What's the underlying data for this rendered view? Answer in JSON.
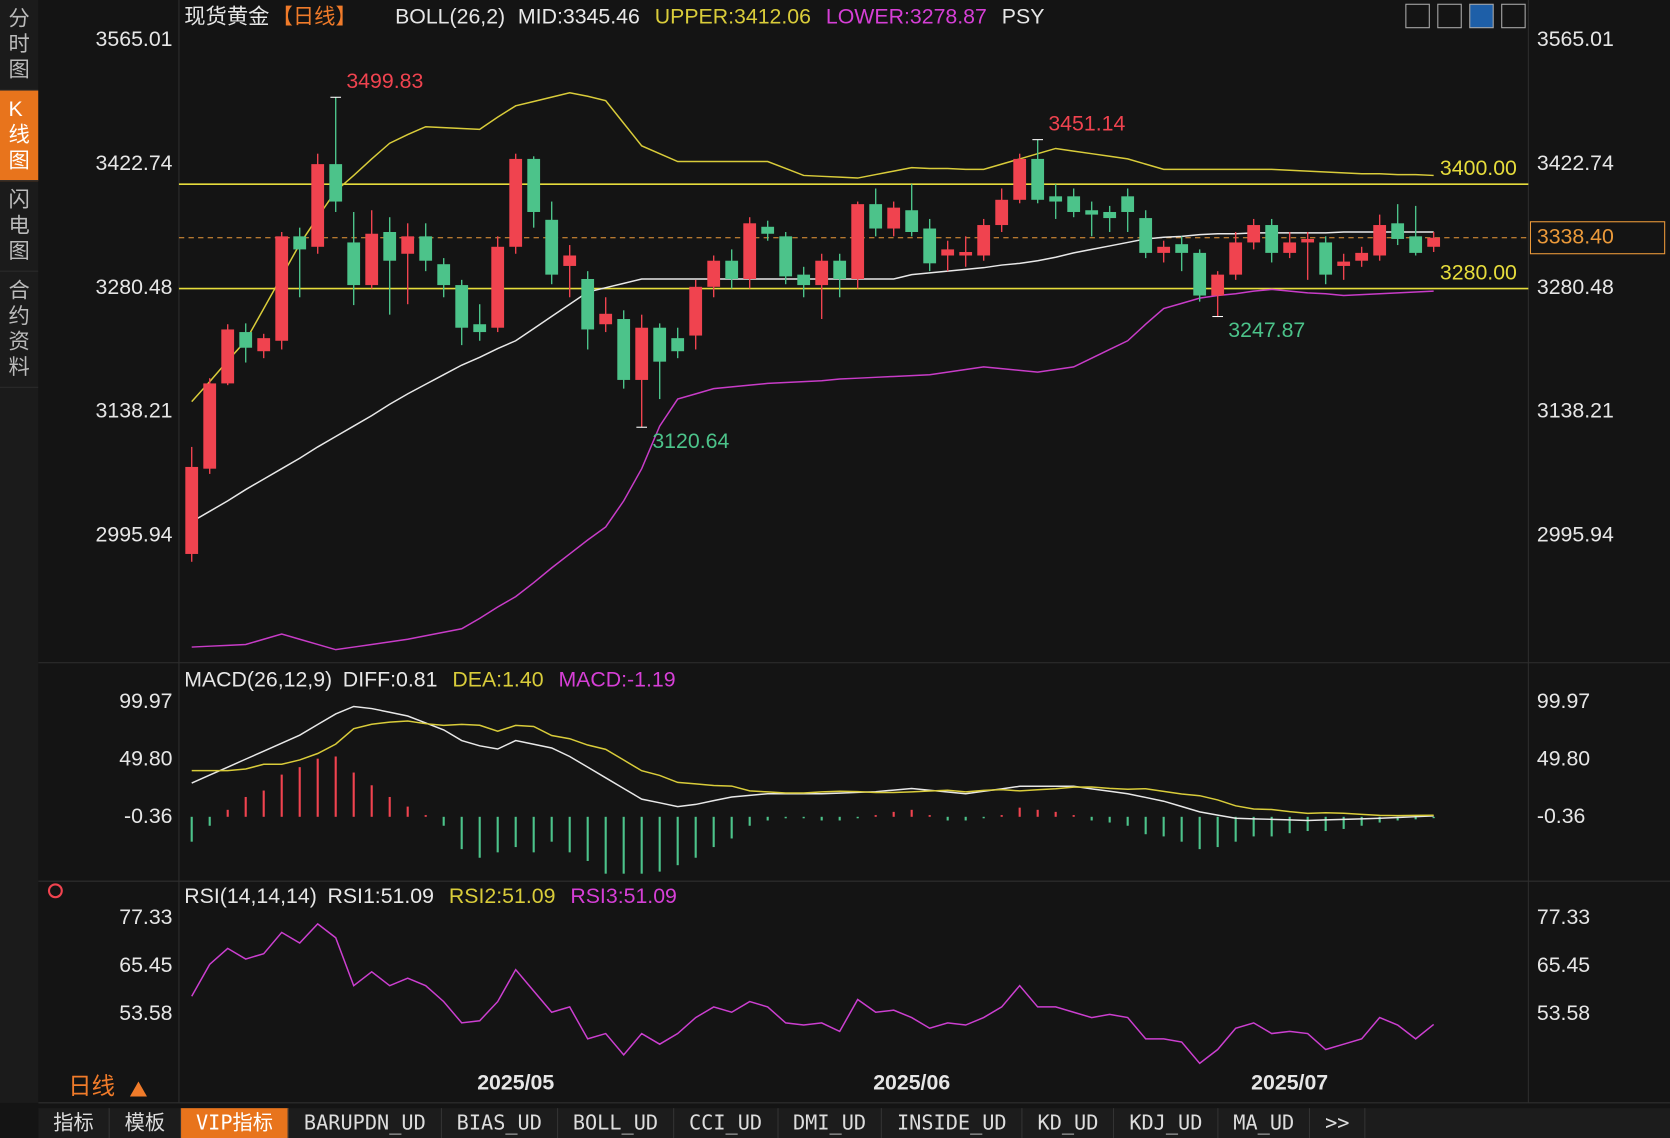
{
  "ui": {
    "sidebar": [
      "分时图",
      "K线图",
      "闪电图",
      "合约资料"
    ],
    "period": "日线",
    "tabs": [
      "指标",
      "模板",
      "VIP指标",
      "BARUPDN_UD",
      "BIAS_UD",
      "BOLL_UD",
      "CCI_UD",
      "DMI_UD",
      "INSIDE_UD",
      "KD_UD",
      "KDJ_UD",
      "MA_UD",
      ">>"
    ]
  },
  "chart_data": [
    {
      "type": "candlestick",
      "title": "现货黄金",
      "subtitle": "【日线】",
      "indicator": "BOLL(26,2)",
      "legend": [
        {
          "text": "MID:3345.46",
          "color": "#e8e8e8"
        },
        {
          "text": "UPPER:3412.06",
          "color": "#d9cc3a"
        },
        {
          "text": "LOWER:3278.87",
          "color": "#d63fd6"
        }
      ],
      "extra_label": "PSY",
      "categories": [
        null,
        null,
        null,
        null,
        null,
        null,
        null,
        null,
        null,
        null,
        null,
        null,
        null,
        null,
        null,
        null,
        null,
        null,
        "2025/05",
        null,
        null,
        null,
        null,
        null,
        null,
        null,
        null,
        null,
        null,
        null,
        null,
        null,
        null,
        null,
        null,
        null,
        null,
        null,
        null,
        null,
        "2025/06",
        null,
        null,
        null,
        null,
        null,
        null,
        null,
        null,
        null,
        null,
        null,
        null,
        null,
        null,
        null,
        null,
        null,
        null,
        null,
        null,
        "2025/07",
        null,
        null,
        null,
        null,
        null,
        null,
        null,
        null
      ],
      "candles": {
        "open": [
          2975,
          3073,
          3171,
          3230,
          3208,
          3220,
          3340,
          3328,
          3423,
          3333,
          3284,
          3345,
          3320,
          3340,
          3308,
          3284,
          3239,
          3235,
          3328,
          3429,
          3359,
          3306,
          3291,
          3239,
          3245,
          3175,
          3235,
          3223,
          3226,
          3282,
          3312,
          3291,
          3351,
          3340,
          3296,
          3284,
          3312,
          3291,
          3377,
          3349,
          3370,
          3349,
          3318,
          3318,
          3318,
          3353,
          3382,
          3429,
          3386,
          3386,
          3370,
          3368,
          3386,
          3361,
          3321,
          3331,
          3321,
          3272,
          3296,
          3333,
          3353,
          3321,
          3333,
          3333,
          3306,
          3312,
          3318,
          3355,
          3340,
          3328
        ],
        "high": [
          3098,
          3177,
          3239,
          3240,
          3228,
          3345,
          3350,
          3435,
          3499.83,
          3368,
          3370,
          3362,
          3355,
          3355,
          3315,
          3290,
          3262,
          3340,
          3435,
          3432,
          3380,
          3330,
          3300,
          3270,
          3255,
          3250,
          3240,
          3235,
          3290,
          3318,
          3325,
          3362,
          3358,
          3345,
          3305,
          3320,
          3320,
          3380,
          3395,
          3380,
          3400,
          3360,
          3335,
          3340,
          3360,
          3395,
          3435,
          3451.14,
          3400,
          3395,
          3380,
          3375,
          3395,
          3370,
          3335,
          3340,
          3325,
          3300,
          3345,
          3360,
          3360,
          3345,
          3345,
          3340,
          3320,
          3328,
          3365,
          3377,
          3375,
          3345
        ],
        "low": [
          2966,
          3067,
          3169,
          3195,
          3200,
          3210,
          3270,
          3320,
          3368,
          3261,
          3280,
          3250,
          3262,
          3300,
          3270,
          3215,
          3220,
          3230,
          3320,
          3350,
          3285,
          3270,
          3210,
          3230,
          3165,
          3120.64,
          3153,
          3200,
          3210,
          3270,
          3280,
          3280,
          3335,
          3285,
          3270,
          3245,
          3270,
          3280,
          3340,
          3340,
          3340,
          3300,
          3300,
          3305,
          3312,
          3345,
          3378,
          3378,
          3360,
          3362,
          3340,
          3345,
          3345,
          3315,
          3310,
          3300,
          3265,
          3247.87,
          3290,
          3325,
          3310,
          3315,
          3290,
          3285,
          3290,
          3305,
          3312,
          3330,
          3318,
          3322
        ],
        "close": [
          3075,
          3171,
          3233,
          3212,
          3223,
          3340,
          3325,
          3423,
          3380,
          3284,
          3343,
          3312,
          3340,
          3312,
          3284,
          3235,
          3230,
          3328,
          3429,
          3368,
          3296,
          3318,
          3233,
          3251,
          3175,
          3235,
          3196,
          3208,
          3282,
          3312,
          3291,
          3355,
          3343,
          3294,
          3284,
          3312,
          3291,
          3377,
          3349,
          3373,
          3345,
          3309,
          3325,
          3322,
          3353,
          3382,
          3429,
          3382,
          3380,
          3368,
          3365,
          3361,
          3368,
          3321,
          3328,
          3321,
          3272,
          3296,
          3333,
          3353,
          3321,
          3333,
          3337,
          3296,
          3311,
          3321,
          3353,
          3337,
          3321,
          3338.4
        ]
      },
      "up_color": "#f0434f",
      "down_color": "#4cc38a",
      "series": [
        {
          "color": "#d9cc3a",
          "values": [
            3150,
            3173,
            3197,
            3220,
            3257,
            3294,
            3331,
            3362,
            3392,
            3410,
            3429,
            3447,
            3457,
            3466,
            3465,
            3464,
            3463,
            3477,
            3490,
            3495,
            3500,
            3505,
            3501,
            3496,
            3470,
            3444,
            3435,
            3426,
            3426,
            3426,
            3426,
            3426,
            3426,
            3418,
            3410,
            3409,
            3408,
            3407,
            3411,
            3415,
            3419,
            3418,
            3418,
            3417,
            3417,
            3423,
            3429,
            3435,
            3441,
            3438,
            3435,
            3432,
            3429,
            3423,
            3417,
            3417,
            3417,
            3417,
            3417,
            3417,
            3417,
            3416,
            3415,
            3414,
            3413,
            3412,
            3412,
            3411,
            3411,
            3410
          ]
        },
        {
          "color": "#e8e8e8",
          "values": [
            3012,
            3024,
            3036,
            3049,
            3061,
            3073,
            3085,
            3098,
            3110,
            3122,
            3134,
            3147,
            3159,
            3170,
            3181,
            3192,
            3201,
            3211,
            3220,
            3234,
            3248,
            3262,
            3276,
            3281,
            3286,
            3291,
            3291,
            3291,
            3291,
            3291,
            3291,
            3291,
            3291,
            3291,
            3291,
            3291,
            3291,
            3291,
            3291,
            3291,
            3296,
            3298,
            3300,
            3302,
            3304,
            3307,
            3309,
            3312,
            3316,
            3321,
            3325,
            3329,
            3333,
            3337,
            3339,
            3340,
            3342,
            3343,
            3343,
            3344,
            3344,
            3344,
            3344,
            3344,
            3345,
            3345,
            3345,
            3345,
            3345,
            3345
          ]
        },
        {
          "color": "#c83cc8",
          "values": [
            2868,
            2869,
            2870,
            2871,
            2877,
            2883,
            2877,
            2871,
            2865,
            2868,
            2871,
            2874,
            2877,
            2881,
            2885,
            2889,
            2901,
            2914,
            2926,
            2942,
            2959,
            2975,
            2991,
            3006,
            3036,
            3073,
            3122,
            3153,
            3159,
            3165,
            3167,
            3169,
            3171,
            3172,
            3173,
            3174,
            3176,
            3177,
            3178,
            3179,
            3180,
            3181,
            3184,
            3187,
            3190,
            3188,
            3186,
            3184,
            3187,
            3190,
            3200,
            3210,
            3220,
            3239,
            3257,
            3263,
            3269,
            3272,
            3274,
            3277,
            3279,
            3277,
            3275,
            3274,
            3272,
            3273,
            3274,
            3275,
            3276,
            3277
          ]
        }
      ],
      "ylim": [
        2852.4,
        3605.5
      ],
      "yticks": [
        2995.94,
        3138.21,
        3280.48,
        3422.74,
        3565.01
      ],
      "grid": false,
      "levels": [
        {
          "value": 3400,
          "label": "3400.00"
        },
        {
          "value": 3280,
          "label": "3280.00"
        }
      ],
      "level_color": "#e6dc3c",
      "last_price": {
        "value": 3338.4,
        "label": "3338.40"
      },
      "last_color": "#ec9a3a",
      "high_labels": [
        3499.83,
        3451.14
      ],
      "low_labels": [
        3120.64,
        3247.87
      ],
      "high_color": "#f0434f",
      "low_color": "#4cc38a"
    },
    {
      "type": "macd",
      "title": "MACD(26,12,9)",
      "legend": [
        {
          "text": "DIFF:0.81",
          "color": "#e8e8e8"
        },
        {
          "text": "DEA:1.40",
          "color": "#d9cc3a"
        },
        {
          "text": "MACD:-1.19",
          "color": "#d63fd6"
        }
      ],
      "values": [
        -21.7,
        -7.8,
        6.1,
        17.3,
        22.9,
        36.8,
        43.3,
        50.7,
        52.6,
        38.6,
        27.5,
        17.3,
        8.9,
        1.5,
        -7.8,
        -28.2,
        -35.7,
        -31.0,
        -26.4,
        -31.0,
        -21.7,
        -31.0,
        -38.5,
        -49.6,
        -49.6,
        -49.6,
        -47.8,
        -42.2,
        -35.7,
        -26.4,
        -18.9,
        -7.8,
        -3.2,
        -1.3,
        -1.3,
        -3.2,
        -3.2,
        -1.3,
        1.5,
        4.3,
        6.1,
        1.5,
        -3.2,
        -3.2,
        -1.3,
        1.5,
        8.0,
        6.1,
        4.3,
        1.5,
        -3.2,
        -5.0,
        -7.8,
        -15.2,
        -17.1,
        -21.7,
        -28.2,
        -26.4,
        -21.7,
        -17.1,
        -17.1,
        -14.3,
        -12.4,
        -12.4,
        -10.6,
        -7.8,
        -5.0,
        -3.2,
        -2.2,
        -1.19
      ],
      "up_color": "#f0434f",
      "down_color": "#4cc38a",
      "series": [
        {
          "color": "#e8e8e8",
          "values": [
            29.4,
            36.4,
            43.3,
            50.3,
            57.2,
            64.2,
            71.2,
            80.5,
            89.7,
            96.2,
            94.4,
            91.2,
            87.9,
            81.9,
            75.8,
            66.5,
            61.9,
            59.1,
            66.5,
            63.3,
            60.0,
            52.6,
            43.3,
            34.0,
            24.7,
            15.4,
            12.2,
            8.9,
            10.8,
            14.1,
            17.3,
            18.7,
            20.1,
            20.1,
            20.1,
            20.1,
            20.7,
            21.3,
            21.9,
            23.3,
            24.7,
            23.2,
            21.6,
            20.1,
            22.3,
            24.4,
            26.6,
            26.6,
            26.6,
            26.6,
            24.4,
            22.3,
            20.1,
            16.9,
            13.6,
            9.0,
            4.3,
            1.5,
            -1.3,
            -1.8,
            -2.2,
            -2.7,
            -3.2,
            -2.7,
            -2.2,
            -1.8,
            -1.3,
            -0.6,
            0.1,
            0.81
          ]
        },
        {
          "color": "#d9cc3a",
          "values": [
            40.3,
            40.3,
            40.3,
            41.7,
            45.8,
            45.8,
            49.6,
            55.2,
            63.4,
            76.9,
            80.7,
            82.6,
            83.5,
            81.2,
            79.7,
            80.6,
            79.8,
            74.6,
            79.7,
            78.8,
            70.9,
            68.1,
            62.6,
            58.8,
            49.5,
            40.2,
            36.1,
            30.0,
            28.7,
            27.3,
            26.8,
            22.6,
            21.7,
            20.8,
            20.8,
            21.7,
            22.3,
            22.0,
            21.2,
            21.2,
            21.7,
            22.5,
            23.2,
            21.7,
            23.0,
            23.7,
            22.6,
            23.6,
            24.5,
            25.9,
            26.0,
            24.8,
            24.0,
            24.5,
            22.2,
            19.9,
            18.4,
            14.7,
            9.6,
            6.8,
            6.4,
            4.5,
            3.0,
            3.5,
            3.1,
            2.1,
            1.2,
            1.0,
            1.2,
            1.4
          ]
        }
      ],
      "ylim": [
        -54.3,
        126.9
      ],
      "yticks": [
        -0.36,
        {
          "value": 49.8,
          "label": "49.80"
        },
        99.97
      ]
    },
    {
      "type": "rsi",
      "title": "RSI(14,14,14)",
      "legend": [
        {
          "text": "RSI1:51.09",
          "color": "#e8e8e8"
        },
        {
          "text": "RSI2:51.09",
          "color": "#d9cc3a"
        },
        {
          "text": "RSI3:51.09",
          "color": "#d63fd6"
        }
      ],
      "color": "#cc3fd0",
      "values": [
        58.07,
        65.98,
        69.94,
        67.3,
        68.62,
        73.9,
        71.26,
        76.01,
        72.58,
        60.7,
        64.13,
        60.7,
        62.55,
        60.7,
        56.75,
        51.47,
        52.0,
        56.75,
        64.66,
        59.38,
        54.11,
        55.43,
        47.51,
        48.83,
        43.55,
        48.83,
        46.19,
        48.83,
        52.79,
        55.43,
        54.11,
        56.75,
        55.43,
        51.47,
        50.94,
        51.47,
        49.36,
        57.27,
        54.11,
        54.63,
        52.79,
        50.15,
        51.47,
        50.94,
        52.79,
        55.43,
        60.7,
        55.43,
        55.43,
        54.11,
        52.79,
        53.58,
        52.79,
        47.51,
        47.51,
        46.72,
        41.44,
        44.87,
        50.15,
        51.47,
        48.83,
        49.36,
        48.83,
        44.87,
        46.19,
        47.51,
        52.79,
        50.94,
        47.51,
        51.09
      ],
      "ylim": [
        40.9,
        85.8
      ],
      "yticks": [
        53.58,
        65.45,
        77.33
      ]
    }
  ]
}
